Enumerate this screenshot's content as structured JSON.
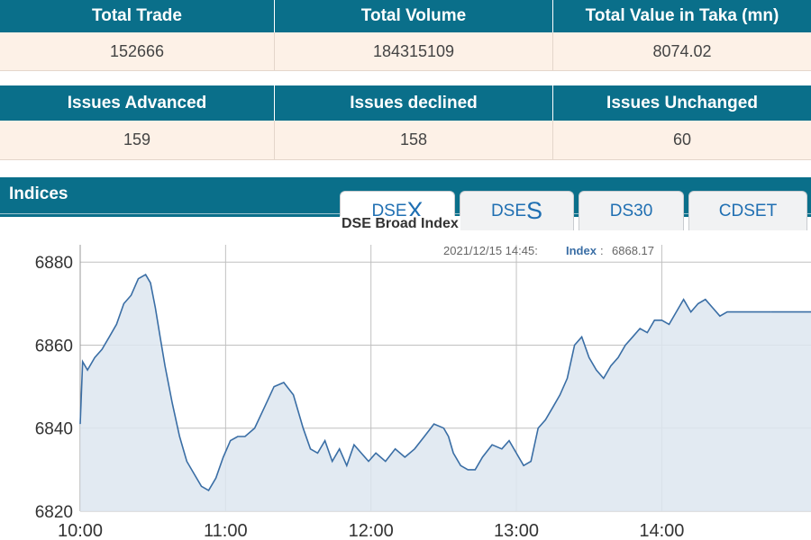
{
  "market_summary": {
    "headers": [
      "Total Trade",
      "Total Volume",
      "Total Value in Taka (mn)"
    ],
    "values": [
      "152666",
      "184315109",
      "8074.02"
    ]
  },
  "issues_summary": {
    "headers": [
      "Issues Advanced",
      "Issues declined",
      "Issues Unchanged"
    ],
    "values": [
      "159",
      "158",
      "60"
    ]
  },
  "indices": {
    "title": "Indices",
    "tabs": [
      {
        "label_prefix": "DSE",
        "label_suffix": "X",
        "active": true
      },
      {
        "label_prefix": "DSE",
        "label_suffix": "S",
        "active": false
      },
      {
        "label": "DS30",
        "active": false
      },
      {
        "label": "CDSET",
        "active": false
      }
    ]
  },
  "chart_data": {
    "type": "area",
    "title": "DSE Broad Index",
    "tooltip": {
      "time": "2021/12/15 14:45:",
      "label": "Index",
      "value": "6868.17"
    },
    "xlabels": [
      "10:00",
      "11:00",
      "12:00",
      "13:00",
      "14:00"
    ],
    "yticks": [
      6820,
      6840,
      6860,
      6880
    ],
    "ylim": [
      6820,
      6882
    ],
    "xlim": [
      "10:00",
      "14:45"
    ],
    "grid": true,
    "colors": {
      "line": "#3a6ea5",
      "fill": "#dde6f0",
      "grid": "#c0c0c0"
    },
    "x": [
      "10:00",
      "10:01",
      "10:03",
      "10:06",
      "10:09",
      "10:12",
      "10:15",
      "10:18",
      "10:21",
      "10:24",
      "10:27",
      "10:29",
      "10:31",
      "10:33",
      "10:35",
      "10:38",
      "10:41",
      "10:44",
      "10:47",
      "10:50",
      "10:53",
      "10:56",
      "10:59",
      "11:02",
      "11:05",
      "11:08",
      "11:12",
      "11:16",
      "11:20",
      "11:24",
      "11:28",
      "11:32",
      "11:35",
      "11:38",
      "11:41",
      "11:44",
      "11:47",
      "11:50",
      "11:53",
      "11:56",
      "11:59",
      "12:02",
      "12:06",
      "12:10",
      "12:14",
      "12:18",
      "12:22",
      "12:26",
      "12:30",
      "12:32",
      "12:34",
      "12:37",
      "12:40",
      "12:43",
      "12:46",
      "12:50",
      "12:54",
      "12:57",
      "13:00",
      "13:03",
      "13:06",
      "13:09",
      "13:12",
      "13:15",
      "13:18",
      "13:21",
      "13:24",
      "13:27",
      "13:30",
      "13:33",
      "13:36",
      "13:39",
      "13:42",
      "13:45",
      "13:48",
      "13:51",
      "13:54",
      "13:57",
      "14:00",
      "14:03",
      "14:06",
      "14:09",
      "14:12",
      "14:15",
      "14:18",
      "14:21",
      "14:24",
      "14:27",
      "14:30",
      "14:33",
      "14:36",
      "14:39",
      "14:42",
      "14:45"
    ],
    "values": [
      6841,
      6856,
      6854,
      6857,
      6859,
      6862,
      6865,
      6870,
      6872,
      6876,
      6877,
      6875,
      6869,
      6862,
      6855,
      6846,
      6838,
      6832,
      6829,
      6826,
      6825,
      6828,
      6833,
      6837,
      6838,
      6838,
      6840,
      6845,
      6850,
      6851,
      6848,
      6840,
      6835,
      6834,
      6837,
      6832,
      6835,
      6831,
      6836,
      6834,
      6832,
      6834,
      6832,
      6835,
      6833,
      6835,
      6838,
      6841,
      6840,
      6838,
      6834,
      6831,
      6830,
      6830,
      6833,
      6836,
      6835,
      6837,
      6834,
      6831,
      6832,
      6840,
      6842,
      6845,
      6848,
      6852,
      6860,
      6862,
      6857,
      6854,
      6852,
      6855,
      6857,
      6860,
      6862,
      6864,
      6863,
      6866,
      6866,
      6865,
      6868,
      6871,
      6868,
      6870,
      6871,
      6869,
      6867,
      6868,
      6868,
      6868,
      6868,
      6868,
      6868,
      6868
    ]
  }
}
